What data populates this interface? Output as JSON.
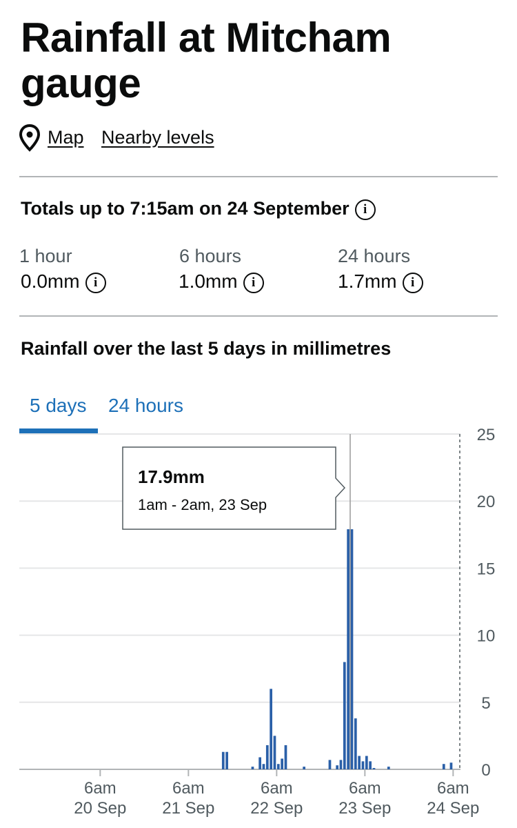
{
  "header": {
    "title": "Rainfall at Mitcham gauge",
    "links": [
      "Map",
      "Nearby levels"
    ]
  },
  "totals": {
    "heading": "Totals up to 7:15am on 24 September",
    "items": [
      {
        "label": "1 hour",
        "value": "0.0mm"
      },
      {
        "label": "6 hours",
        "value": "1.0mm"
      },
      {
        "label": "24 hours",
        "value": "1.7mm"
      }
    ]
  },
  "chart_data": {
    "type": "bar",
    "title": "Rainfall over the last 5 days in millimetres",
    "tabs": [
      "5 days",
      "24 hours"
    ],
    "x": [
      "21 Sep 3pm",
      "21 Sep 4pm",
      "21 Sep 11pm",
      "22 Sep 1am",
      "22 Sep 2am",
      "22 Sep 3am",
      "22 Sep 4am",
      "22 Sep 5am",
      "22 Sep 6am",
      "22 Sep 7am",
      "22 Sep 8am",
      "22 Sep 1pm",
      "22 Sep 8pm",
      "22 Sep 10pm",
      "22 Sep 11pm",
      "23 Sep 12am",
      "23 Sep 1am",
      "23 Sep 2am",
      "23 Sep 3am",
      "23 Sep 4am",
      "23 Sep 5am",
      "23 Sep 6am",
      "23 Sep 7am",
      "23 Sep 8am",
      "23 Sep 12pm",
      "24 Sep 3am",
      "24 Sep 5am"
    ],
    "values": [
      1.3,
      1.3,
      0.2,
      0.9,
      0.4,
      1.8,
      6.0,
      2.5,
      0.4,
      0.8,
      1.8,
      0.2,
      0.7,
      0.3,
      0.7,
      8.0,
      17.9,
      17.9,
      3.8,
      1.0,
      0.6,
      1.0,
      0.6,
      0.1,
      0.2,
      0.4,
      0.5
    ],
    "color": "#2b60a8",
    "xlim": [
      "19 Sep 8am",
      "24 Sep 8am"
    ],
    "xticks": [
      {
        "value": "20 Sep 6am",
        "label": [
          "6am",
          "20 Sep"
        ]
      },
      {
        "value": "21 Sep 6am",
        "label": [
          "6am",
          "21 Sep"
        ]
      },
      {
        "value": "22 Sep 6am",
        "label": [
          "6am",
          "22 Sep"
        ]
      },
      {
        "value": "23 Sep 6am",
        "label": [
          "6am",
          "23 Sep"
        ]
      },
      {
        "value": "24 Sep 6am",
        "label": [
          "6am",
          "24 Sep"
        ]
      }
    ],
    "ylim": [
      0,
      25
    ],
    "yticks": [
      0,
      5,
      10,
      15,
      20,
      25
    ],
    "grid": true,
    "tooltip": {
      "title": "17.9mm",
      "subtitle": "1am - 2am, 23 Sep"
    }
  }
}
